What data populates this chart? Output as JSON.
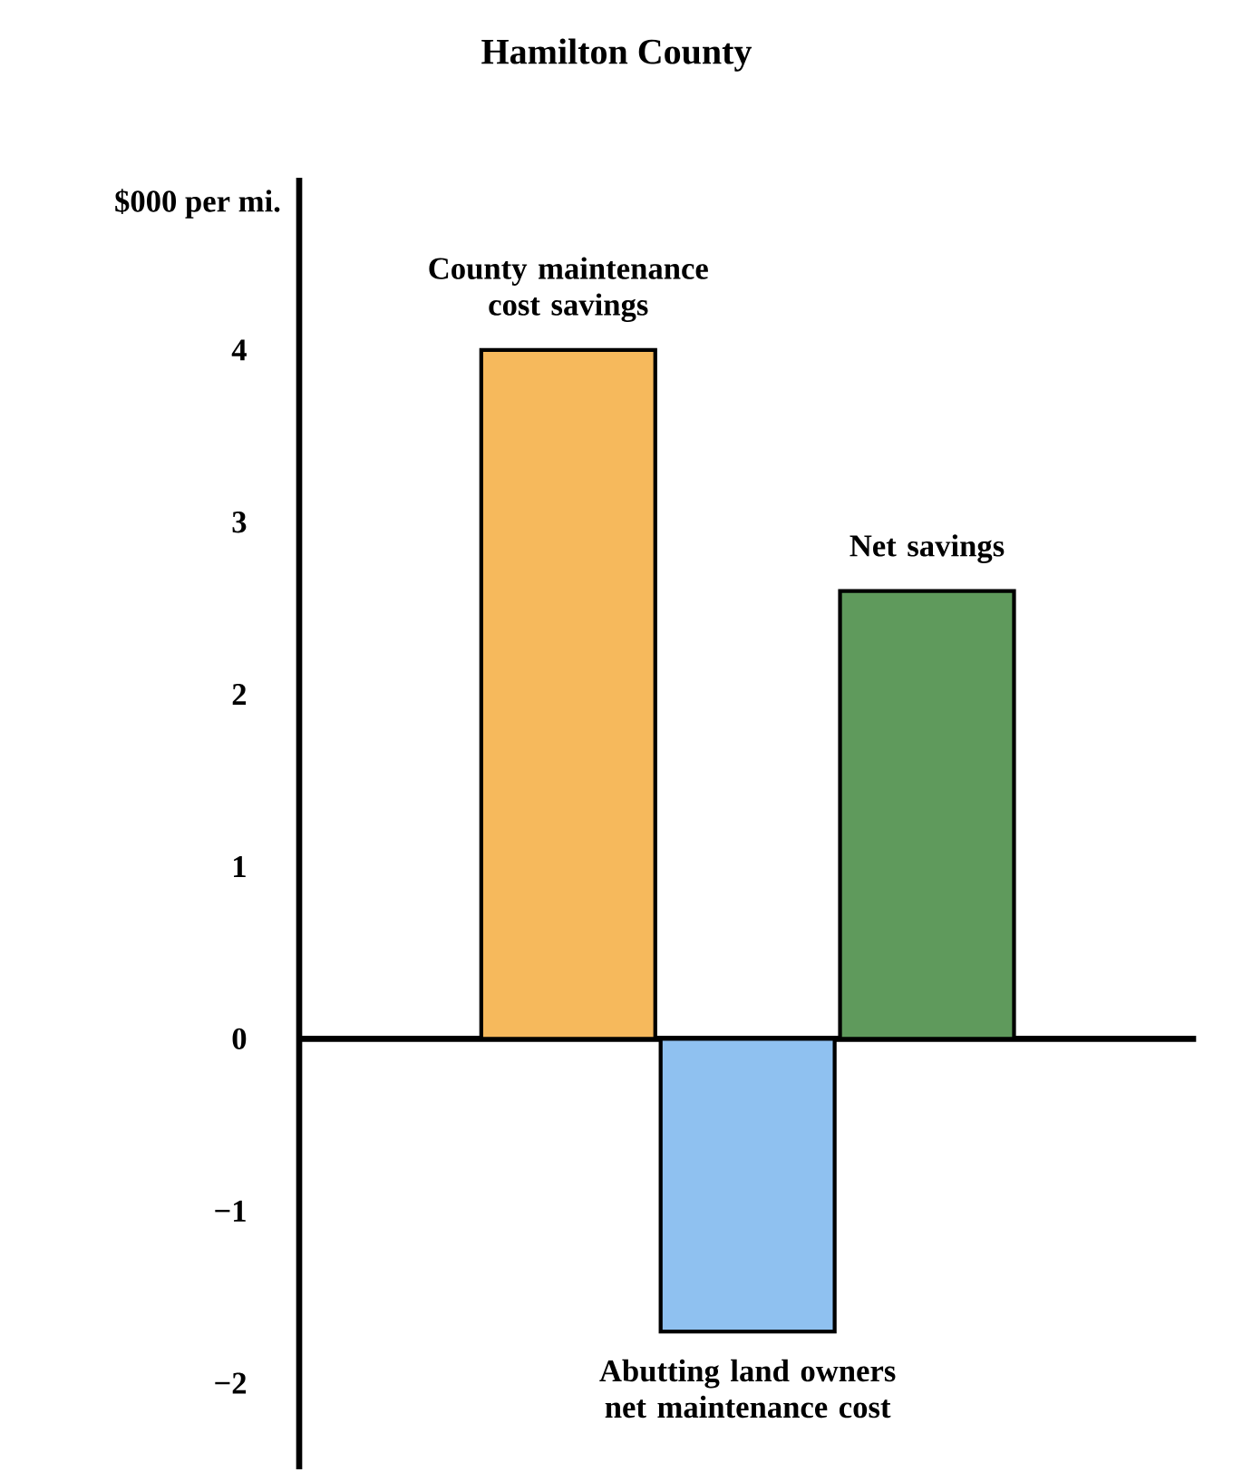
{
  "chart_data": {
    "type": "bar",
    "title": "Hamilton County",
    "ylabel": "$000 per mi.",
    "categories": [
      "County maintenance cost savings",
      "Abutting land owners net maintenance cost",
      "Net savings"
    ],
    "values": [
      4.0,
      -1.7,
      2.6
    ],
    "colors": [
      "#f6b95c",
      "#8fc1f0",
      "#5f9a5c"
    ],
    "ylim": [
      -2.5,
      5
    ],
    "yticks": [
      {
        "value": -2,
        "label": "−2"
      },
      {
        "value": -1,
        "label": "−1"
      },
      0,
      1,
      2,
      3,
      4
    ],
    "tick_labels": "y"
  }
}
